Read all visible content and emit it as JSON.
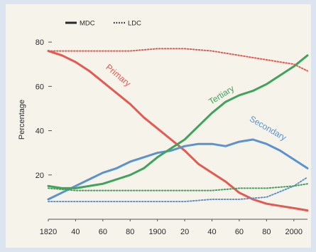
{
  "chart_data": {
    "type": "line",
    "title": "",
    "xlabel": "",
    "ylabel": "Percentage",
    "xlim": [
      1820,
      2010
    ],
    "ylim": [
      0,
      90
    ],
    "x_ticks": [
      {
        "value": 1820,
        "label": "1820"
      },
      {
        "value": 1840,
        "label": "40"
      },
      {
        "value": 1860,
        "label": "60"
      },
      {
        "value": 1880,
        "label": "80"
      },
      {
        "value": 1900,
        "label": "1900"
      },
      {
        "value": 1920,
        "label": "20"
      },
      {
        "value": 1940,
        "label": "40"
      },
      {
        "value": 1960,
        "label": "60"
      },
      {
        "value": 1980,
        "label": "80"
      },
      {
        "value": 2000,
        "label": "2000"
      }
    ],
    "y_ticks": [
      {
        "value": 20,
        "label": "20"
      },
      {
        "value": 40,
        "label": "40"
      },
      {
        "value": 60,
        "label": "60"
      },
      {
        "value": 80,
        "label": "80"
      }
    ],
    "grid": false,
    "legend_position": "top-left",
    "legend": [
      {
        "label": "MDC",
        "style": "solid",
        "color": "#2a2a2a"
      },
      {
        "label": "LDC",
        "style": "dotted",
        "color": "#2a2a2a"
      }
    ],
    "series": [
      {
        "name": "Primary",
        "group": "MDC",
        "style": "solid",
        "color": "#e35a52",
        "x": [
          1820,
          1830,
          1840,
          1850,
          1860,
          1870,
          1880,
          1890,
          1900,
          1910,
          1920,
          1930,
          1940,
          1950,
          1960,
          1970,
          1980,
          1990,
          2000,
          2010
        ],
        "y": [
          76,
          74,
          71,
          67,
          62,
          57,
          52,
          46,
          41,
          36,
          31,
          25,
          21,
          17,
          12,
          9,
          7,
          6,
          5,
          4
        ]
      },
      {
        "name": "Secondary",
        "group": "MDC",
        "style": "solid",
        "color": "#5a93cf",
        "x": [
          1820,
          1830,
          1840,
          1850,
          1860,
          1870,
          1880,
          1890,
          1900,
          1910,
          1920,
          1930,
          1940,
          1950,
          1960,
          1970,
          1980,
          1990,
          2000,
          2010
        ],
        "y": [
          9,
          12,
          15,
          18,
          21,
          23,
          26,
          28,
          30,
          31,
          33,
          34,
          34,
          33,
          35,
          36,
          34,
          31,
          27,
          23
        ]
      },
      {
        "name": "Tertiary",
        "group": "MDC",
        "style": "solid",
        "color": "#3fa35a",
        "x": [
          1820,
          1830,
          1840,
          1850,
          1860,
          1870,
          1880,
          1890,
          1900,
          1910,
          1920,
          1930,
          1940,
          1950,
          1960,
          1970,
          1980,
          1990,
          2000,
          2010
        ],
        "y": [
          15,
          14,
          14,
          15,
          16,
          18,
          20,
          23,
          28,
          32,
          36,
          42,
          48,
          53,
          56,
          58,
          61,
          65,
          69,
          74
        ]
      },
      {
        "name": "Primary",
        "group": "LDC",
        "style": "dotted",
        "color": "#e35a52",
        "x": [
          1820,
          1840,
          1860,
          1880,
          1900,
          1920,
          1940,
          1960,
          1980,
          2000,
          2010
        ],
        "y": [
          76,
          76,
          76,
          76,
          77,
          77,
          76,
          74,
          72,
          70,
          67
        ]
      },
      {
        "name": "Secondary",
        "group": "LDC",
        "style": "dotted",
        "color": "#5a93cf",
        "x": [
          1820,
          1840,
          1860,
          1880,
          1900,
          1920,
          1940,
          1960,
          1980,
          2000,
          2010
        ],
        "y": [
          8,
          8,
          8,
          8,
          8,
          8,
          9,
          9,
          10,
          15,
          19
        ]
      },
      {
        "name": "Tertiary",
        "group": "LDC",
        "style": "dotted",
        "color": "#3fa35a",
        "x": [
          1820,
          1840,
          1860,
          1880,
          1900,
          1920,
          1940,
          1960,
          1980,
          2000,
          2010
        ],
        "y": [
          14,
          13,
          13,
          13,
          13,
          13,
          13,
          14,
          14,
          15,
          16
        ]
      }
    ],
    "series_labels": [
      {
        "text": "Primary",
        "x": 1870,
        "y": 64,
        "angle": 40,
        "color": "#e35a52"
      },
      {
        "text": "Tertiary",
        "x": 1948,
        "y": 55,
        "angle": -32,
        "color": "#3fa35a"
      },
      {
        "text": "Secondary",
        "x": 1980,
        "y": 40,
        "angle": 30,
        "color": "#5a93cf"
      }
    ]
  }
}
